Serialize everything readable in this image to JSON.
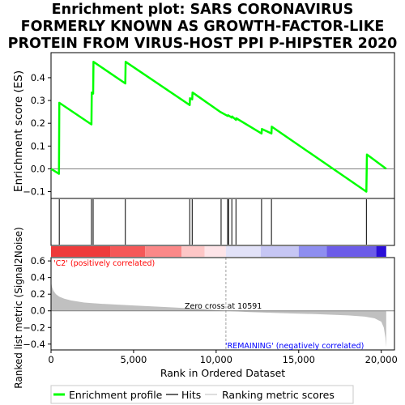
{
  "title_lines": [
    "Enrichment plot: SARS CORONAVIRUS",
    "FORMERLY KNOWN AS GROWTH-FACTOR-LIKE",
    "PROTEIN FROM VIRUS-HOST PPI P-HIPSTER 2020"
  ],
  "colors": {
    "enrichment_line": "#00ff00",
    "hit_line": "#000000",
    "metric_fill": "#c0c0c0",
    "zero_line": "#808080",
    "positive_label": "#ff0000",
    "negative_label": "#0000ff",
    "axis": "#000000"
  },
  "chart_data": [
    {
      "type": "line",
      "name": "enrichment-profile",
      "ylabel": "Enrichment score (ES)",
      "xlim": [
        0,
        20800
      ],
      "ylim": [
        -0.13,
        0.51
      ],
      "yticks": [
        -0.1,
        0.0,
        0.1,
        0.2,
        0.3,
        0.4
      ],
      "ytick_labels": [
        "−0.1",
        "0.0",
        "0.1",
        "0.2",
        "0.3",
        "0.4"
      ],
      "points": [
        [
          0,
          0.0
        ],
        [
          480,
          -0.022
        ],
        [
          500,
          0.29
        ],
        [
          2450,
          0.195
        ],
        [
          2470,
          0.335
        ],
        [
          2550,
          0.33
        ],
        [
          2570,
          0.47
        ],
        [
          4500,
          0.375
        ],
        [
          4520,
          0.47
        ],
        [
          8400,
          0.28
        ],
        [
          8420,
          0.31
        ],
        [
          8550,
          0.305
        ],
        [
          8570,
          0.335
        ],
        [
          10250,
          0.25
        ],
        [
          10700,
          0.232
        ],
        [
          10730,
          0.235
        ],
        [
          10950,
          0.225
        ],
        [
          10970,
          0.23
        ],
        [
          11200,
          0.215
        ],
        [
          11220,
          0.222
        ],
        [
          12750,
          0.155
        ],
        [
          12770,
          0.175
        ],
        [
          13350,
          0.155
        ],
        [
          13370,
          0.185
        ],
        [
          19100,
          -0.1
        ],
        [
          19130,
          0.063
        ],
        [
          20300,
          0.0
        ]
      ]
    },
    {
      "type": "hits",
      "name": "hit-positions",
      "hits": [
        500,
        2450,
        2550,
        4500,
        8400,
        8550,
        10300,
        10700,
        10750,
        10950,
        11200,
        12750,
        13350,
        19100
      ]
    },
    {
      "type": "area",
      "name": "ranked-list-metric",
      "xlabel": "Rank in Ordered Dataset",
      "ylabel": "Ranked list metric (Signal2Noise)",
      "xlim": [
        0,
        20800
      ],
      "ylim": [
        -0.47,
        0.64
      ],
      "xticks": [
        0,
        5000,
        10000,
        15000,
        20000
      ],
      "xtick_labels": [
        "0",
        "5,000",
        "10,000",
        "15,000",
        "20,000"
      ],
      "yticks": [
        -0.4,
        -0.2,
        0.0,
        0.2,
        0.4,
        0.6
      ],
      "ytick_labels": [
        "−0.4",
        "−0.2",
        "0.0",
        "0.2",
        "0.4",
        "0.6"
      ],
      "curve": [
        [
          0,
          0.36
        ],
        [
          50,
          0.29
        ],
        [
          150,
          0.24
        ],
        [
          300,
          0.2
        ],
        [
          500,
          0.17
        ],
        [
          800,
          0.145
        ],
        [
          1200,
          0.125
        ],
        [
          2000,
          0.1
        ],
        [
          3000,
          0.085
        ],
        [
          5000,
          0.065
        ],
        [
          7000,
          0.045
        ],
        [
          9000,
          0.025
        ],
        [
          10591,
          0.0
        ],
        [
          12000,
          -0.015
        ],
        [
          14000,
          -0.028
        ],
        [
          16000,
          -0.04
        ],
        [
          18000,
          -0.055
        ],
        [
          19000,
          -0.07
        ],
        [
          19600,
          -0.09
        ],
        [
          20000,
          -0.13
        ],
        [
          20150,
          -0.2
        ],
        [
          20250,
          -0.32
        ],
        [
          20300,
          -0.44
        ]
      ],
      "zero_cross": 10591,
      "zero_cross_label": "Zero cross at 10591",
      "positive_label": "'C2' (positively correlated)",
      "negative_label": "'REMAINING' (negatively correlated)"
    }
  ],
  "color_bar": {
    "segments": [
      {
        "end": 3600,
        "color": "#ee3b3b"
      },
      {
        "end": 5700,
        "color": "#f55858"
      },
      {
        "end": 7900,
        "color": "#fb8888"
      },
      {
        "end": 9300,
        "color": "#fdc6c6"
      },
      {
        "end": 10591,
        "color": "#fde4e8"
      },
      {
        "end": 12700,
        "color": "#e2e2f8"
      },
      {
        "end": 15000,
        "color": "#c6c6f4"
      },
      {
        "end": 16700,
        "color": "#8e8ef0"
      },
      {
        "end": 19700,
        "color": "#6c5ce8"
      },
      {
        "end": 20300,
        "color": "#2a0fd8"
      }
    ]
  },
  "legend": {
    "items": [
      {
        "label": "Enrichment profile",
        "kind": "green-line"
      },
      {
        "label": "Hits",
        "kind": "black-line"
      },
      {
        "label": "Ranking metric scores",
        "kind": "gray-line"
      }
    ]
  }
}
